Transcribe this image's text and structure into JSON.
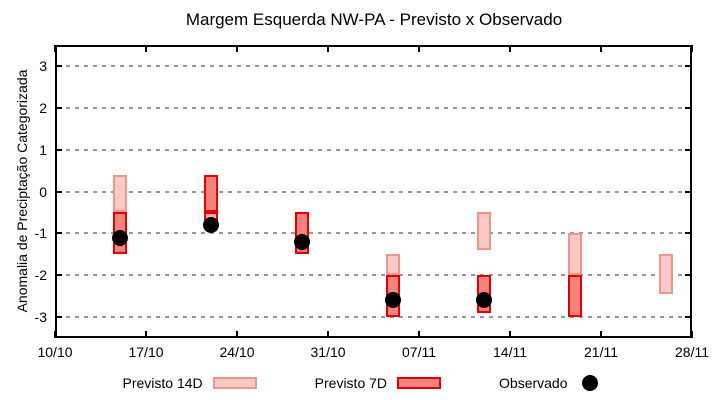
{
  "title": "Margem Esquerda NW-PA - Previsto x Observado",
  "chart_data": {
    "type": "bar",
    "title": "Margem Esquerda NW-PA - Previsto x Observado",
    "xlabel": "",
    "ylabel": "Anomalia de Preciptação Categorizada",
    "ylim": [
      -3.5,
      3.5
    ],
    "ytick_values": [
      3,
      2,
      1,
      0,
      -1,
      -2,
      -3
    ],
    "xtick_labels": [
      "10/10",
      "17/10",
      "24/10",
      "31/10",
      "07/11",
      "14/11",
      "21/11",
      "28/11"
    ],
    "xtick_days": [
      0,
      7,
      14,
      21,
      28,
      35,
      42,
      49
    ],
    "x_range_days": [
      0,
      49
    ],
    "grid": true,
    "grid_color": "#989898",
    "legend_position": "bottom",
    "series_styles": {
      "14d": {
        "fill": "#f9c9c3",
        "border": "#f0958a"
      },
      "7d": {
        "fill": "#f5837b",
        "border": "#e60000"
      },
      "7d_light": {
        "fill": "#f8b3ac",
        "border": "#e60000"
      },
      "observed": {
        "color": "#000000"
      }
    },
    "legend": [
      {
        "label": "Previsto 14D",
        "swatch": "14d"
      },
      {
        "label": "Previsto 7D",
        "swatch": "7d"
      },
      {
        "label": "Observado",
        "swatch": "observed"
      }
    ],
    "clusters": [
      {
        "date": "15/10",
        "day": 5,
        "segments": [
          {
            "style": "14d",
            "from": 0.4,
            "to": -0.5
          },
          {
            "style": "7d",
            "from": -0.5,
            "to": -1.5
          }
        ],
        "observed": -1.1
      },
      {
        "date": "22/10",
        "day": 12,
        "segments": [
          {
            "style": "7d",
            "from": 0.4,
            "to": -0.5
          },
          {
            "style": "7d_light",
            "from": -0.5,
            "to": -0.9
          }
        ],
        "observed": -0.8
      },
      {
        "date": "29/10",
        "day": 19,
        "segments": [
          {
            "style": "7d",
            "from": -0.5,
            "to": -1.5
          }
        ],
        "observed": -1.2
      },
      {
        "date": "05/11",
        "day": 26,
        "segments": [
          {
            "style": "14d",
            "from": -1.5,
            "to": -2.0
          },
          {
            "style": "7d",
            "from": -2.0,
            "to": -3.0
          }
        ],
        "observed": -2.6
      },
      {
        "date": "12/11",
        "day": 33,
        "segments": [
          {
            "style": "14d",
            "from": -0.5,
            "to": -1.4
          },
          {
            "style": "7d",
            "from": -2.0,
            "to": -2.9
          }
        ],
        "observed": -2.6
      },
      {
        "date": "19/11",
        "day": 40,
        "segments": [
          {
            "style": "14d",
            "from": -1.0,
            "to": -2.0
          },
          {
            "style": "7d",
            "from": -2.0,
            "to": -3.0
          }
        ],
        "observed": null
      },
      {
        "date": "26/11",
        "day": 47,
        "segments": [
          {
            "style": "14d",
            "from": -1.5,
            "to": -2.45
          }
        ],
        "observed": null
      }
    ]
  }
}
